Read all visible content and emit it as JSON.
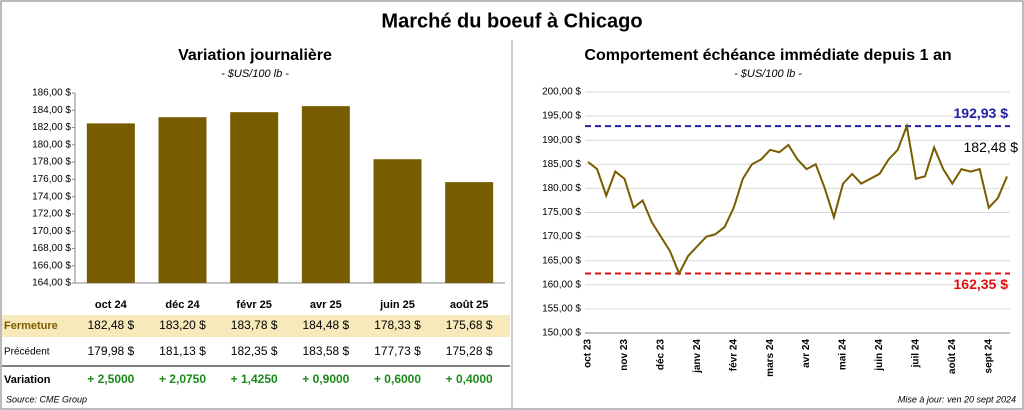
{
  "title": "Marché du boeuf à Chicago",
  "chart_data": [
    {
      "type": "bar",
      "title": "Variation journalière",
      "subtitle": "- $US/100 lb -",
      "categories": [
        "oct 24",
        "déc 24",
        "févr 25",
        "avr 25",
        "juin 25",
        "août 25"
      ],
      "values": [
        182.48,
        183.2,
        183.78,
        184.48,
        178.33,
        175.68
      ],
      "value_labels": [
        "182,48 $",
        "183,20 $",
        "183,78 $",
        "184,48 $",
        "178,33 $",
        "175,68 $"
      ],
      "color": "#7a5c00",
      "ylim": [
        164,
        186
      ],
      "yticks": [
        {
          "value": 164,
          "label": "164,00 $"
        },
        {
          "value": 166,
          "label": "166,00 $"
        },
        {
          "value": 168,
          "label": "168,00 $"
        },
        {
          "value": 170,
          "label": "170,00 $"
        },
        {
          "value": 172,
          "label": "172,00 $"
        },
        {
          "value": 174,
          "label": "174,00 $"
        },
        {
          "value": 176,
          "label": "176,00 $"
        },
        {
          "value": 178,
          "label": "178,00 $"
        },
        {
          "value": 180,
          "label": "180,00 $"
        },
        {
          "value": 182,
          "label": "182,00 $"
        },
        {
          "value": 184,
          "label": "184,00 $"
        },
        {
          "value": 186,
          "label": "186,00 $"
        }
      ]
    },
    {
      "type": "line",
      "title": "Comportement  échéance immédiate depuis 1 an",
      "subtitle": "- $US/100 lb -",
      "categories": [
        "oct 23",
        null,
        null,
        null,
        "nov 23",
        null,
        null,
        null,
        "déc 23",
        null,
        null,
        null,
        "janv 24",
        null,
        null,
        null,
        "févr 24",
        null,
        null,
        null,
        "mars 24",
        null,
        null,
        null,
        "avr 24",
        null,
        null,
        null,
        "mai 24",
        null,
        null,
        null,
        "juin 24",
        null,
        null,
        null,
        "juil 24",
        null,
        null,
        null,
        "août 24",
        null,
        null,
        null,
        "sept 24",
        null,
        null
      ],
      "values": [
        185.5,
        184,
        178.5,
        183.5,
        182,
        176,
        177.5,
        173,
        170,
        167,
        162.35,
        166,
        168,
        170,
        170.5,
        172,
        176,
        182,
        185,
        186,
        188,
        187.5,
        189,
        186,
        184,
        185,
        180,
        174,
        181,
        183,
        181,
        182,
        183,
        186,
        188,
        192.93,
        182,
        182.5,
        188.5,
        184,
        181,
        184,
        183.5,
        184,
        176,
        178,
        182.48
      ],
      "color": "#7a5c00",
      "ylim": [
        150,
        200
      ],
      "yticks": [
        {
          "value": 150,
          "label": "150,00 $"
        },
        {
          "value": 155,
          "label": "155,00 $"
        },
        {
          "value": 160,
          "label": "160,00 $"
        },
        {
          "value": 165,
          "label": "165,00 $"
        },
        {
          "value": 170,
          "label": "170,00 $"
        },
        {
          "value": 175,
          "label": "175,00 $"
        },
        {
          "value": 180,
          "label": "180,00 $"
        },
        {
          "value": 185,
          "label": "185,00 $"
        },
        {
          "value": 190,
          "label": "190,00 $"
        },
        {
          "value": 195,
          "label": "195,00 $"
        },
        {
          "value": 200,
          "label": "200,00 $"
        }
      ],
      "hlines": [
        {
          "value": 192.93,
          "label": "192,93 $",
          "color": "#1f1fa0"
        },
        {
          "value": 162.35,
          "label": "162,35 $",
          "color": "#e01010"
        }
      ],
      "end_label": "182,48 $"
    }
  ],
  "table": {
    "rows": [
      {
        "label": "Fermeture"
      },
      {
        "label": "Précédent",
        "values": [
          "179,98 $",
          "181,13 $",
          "182,35 $",
          "183,58 $",
          "177,73 $",
          "175,28 $"
        ]
      },
      {
        "label": "Variation",
        "values": [
          "+ 2,5000",
          "+ 2,0750",
          "+ 1,4250",
          "+ 0,9000",
          "+ 0,6000",
          "+ 0,4000"
        ]
      }
    ]
  },
  "footer": {
    "source": "Source: CME Group",
    "updated": "Mise à jour: ven 20 sept 2024"
  }
}
